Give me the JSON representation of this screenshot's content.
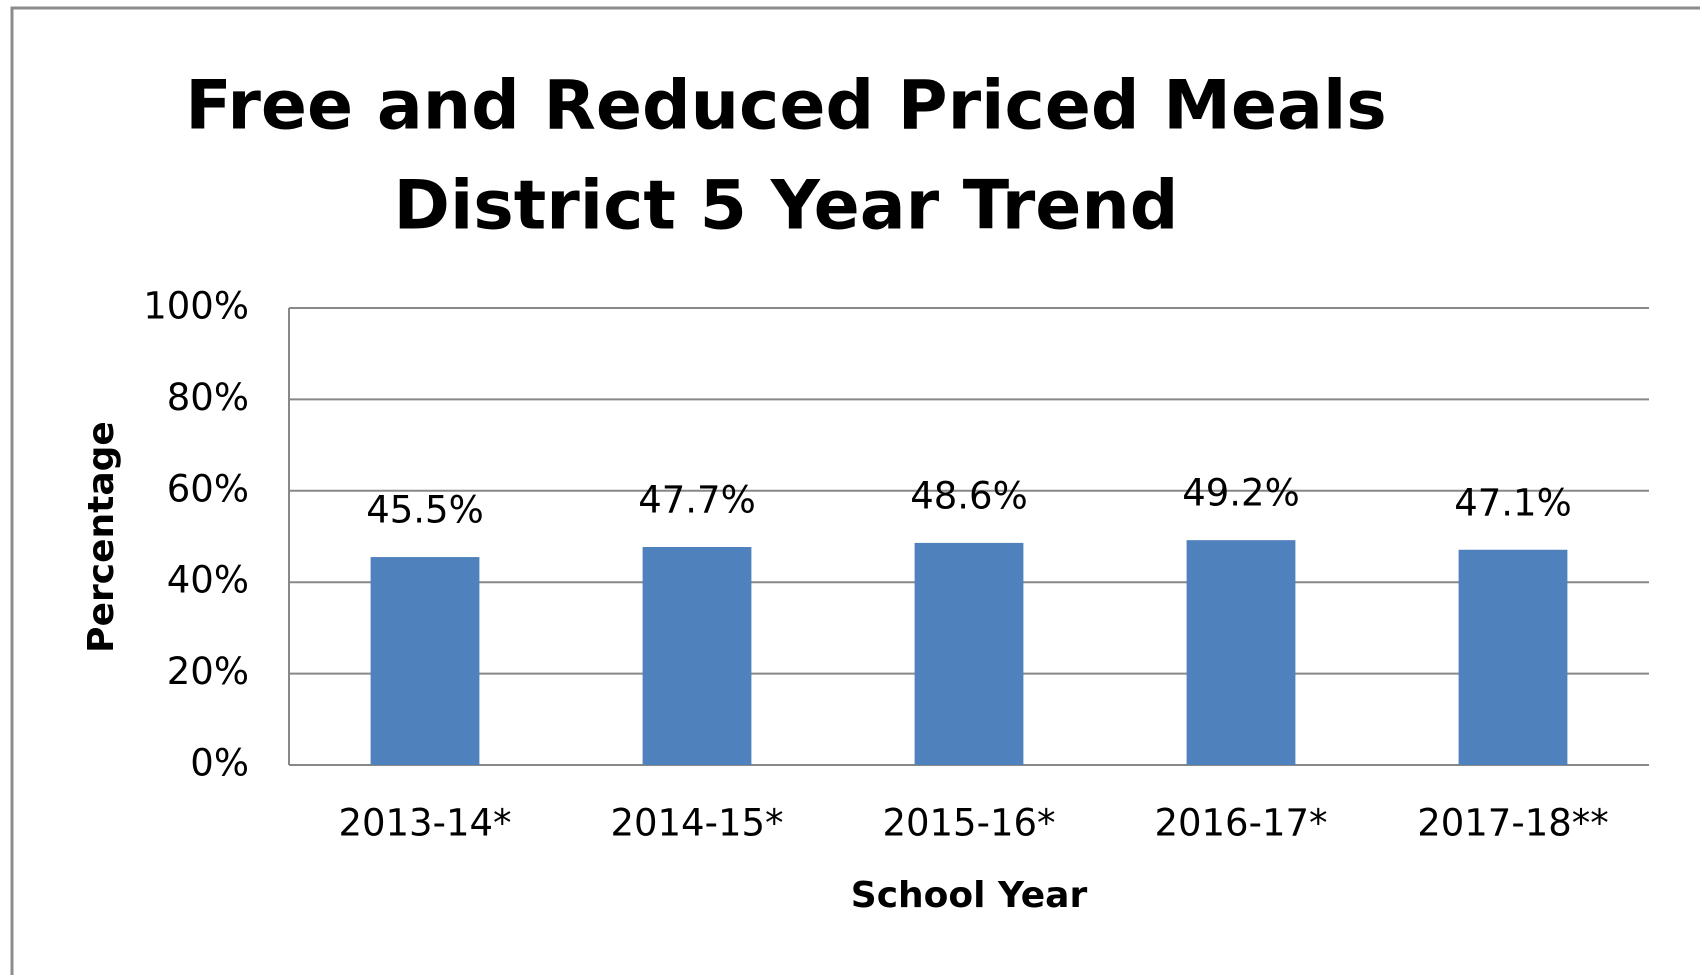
{
  "chart_data": {
    "type": "bar",
    "title": "Free and Reduced Priced Meals",
    "subtitle": "District 5 Year Trend",
    "x_label": "School Year",
    "y_label": "Percentage",
    "categories": [
      "2013-14*",
      "2014-15*",
      "2015-16*",
      "2016-17*",
      "2017-18**"
    ],
    "values": [
      45.5,
      47.7,
      48.6,
      49.2,
      47.1
    ],
    "value_labels": [
      "45.5%",
      "47.7%",
      "48.6%",
      "49.2%",
      "47.1%"
    ],
    "color": "#4f81bd",
    "ylim": [
      0,
      100
    ],
    "yticks": [
      {
        "value": 0,
        "label": "0%"
      },
      {
        "value": 20,
        "label": "20%"
      },
      {
        "value": 40,
        "label": "40%"
      },
      {
        "value": 60,
        "label": "60%"
      },
      {
        "value": 80,
        "label": "80%"
      },
      {
        "value": 100,
        "label": "100%"
      }
    ],
    "grid": true
  }
}
